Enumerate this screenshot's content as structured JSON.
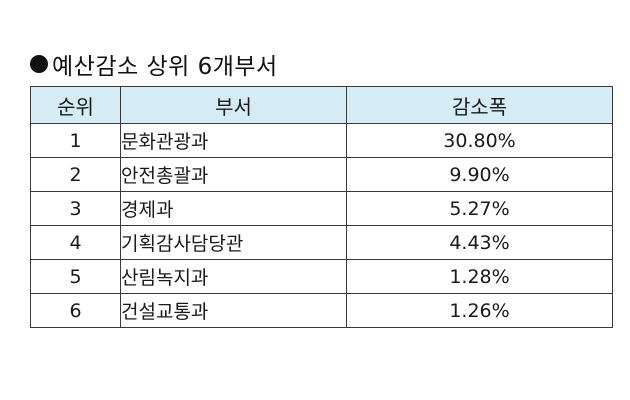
{
  "title": "예산감소 상위 6개부서",
  "table": {
    "headers": {
      "rank": "순위",
      "department": "부서",
      "reduction": "감소폭"
    },
    "rows": [
      {
        "rank": "1",
        "department": "문화관광과",
        "reduction": "30.80%"
      },
      {
        "rank": "2",
        "department": "안전총괄과",
        "reduction": "9.90%"
      },
      {
        "rank": "3",
        "department": "경제과",
        "reduction": "5.27%"
      },
      {
        "rank": "4",
        "department": "기획감사담당관",
        "reduction": "4.43%"
      },
      {
        "rank": "5",
        "department": "산림녹지과",
        "reduction": "1.28%"
      },
      {
        "rank": "6",
        "department": "건설교통과",
        "reduction": "1.26%"
      }
    ]
  },
  "colors": {
    "header_background": "#d6ecf5",
    "border": "#3a3a3a"
  },
  "icons": {
    "bullet": "filled-circle-icon"
  }
}
